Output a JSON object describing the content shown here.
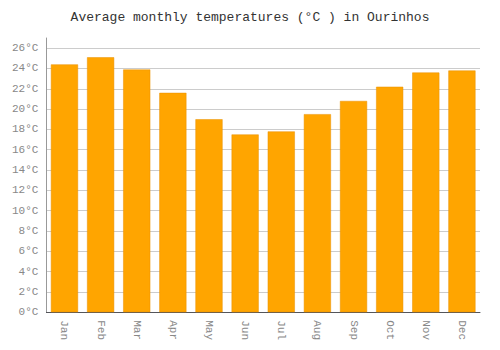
{
  "chart_data": {
    "type": "bar",
    "title": "Average monthly temperatures (°C ) in Ourinhos",
    "categories": [
      "Jan",
      "Feb",
      "Mar",
      "Apr",
      "May",
      "Jun",
      "Jul",
      "Aug",
      "Sep",
      "Oct",
      "Nov",
      "Dec"
    ],
    "values": [
      24.4,
      25.1,
      23.9,
      21.6,
      19.0,
      17.5,
      17.8,
      19.5,
      20.8,
      22.2,
      23.6,
      23.8
    ],
    "color": "#FFA500",
    "ylim": [
      0,
      27
    ],
    "yticks": [
      {
        "value": 0,
        "label": "0°C"
      },
      {
        "value": 2,
        "label": "2°C"
      },
      {
        "value": 4,
        "label": "4°C"
      },
      {
        "value": 6,
        "label": "6°C"
      },
      {
        "value": 8,
        "label": "8°C"
      },
      {
        "value": 10,
        "label": "10°C"
      },
      {
        "value": 12,
        "label": "12°C"
      },
      {
        "value": 14,
        "label": "14°C"
      },
      {
        "value": 16,
        "label": "16°C"
      },
      {
        "value": 18,
        "label": "18°C"
      },
      {
        "value": 20,
        "label": "20°C"
      },
      {
        "value": 22,
        "label": "22°C"
      },
      {
        "value": 24,
        "label": "24°C"
      },
      {
        "value": 26,
        "label": "26°C"
      }
    ],
    "grid": true
  }
}
